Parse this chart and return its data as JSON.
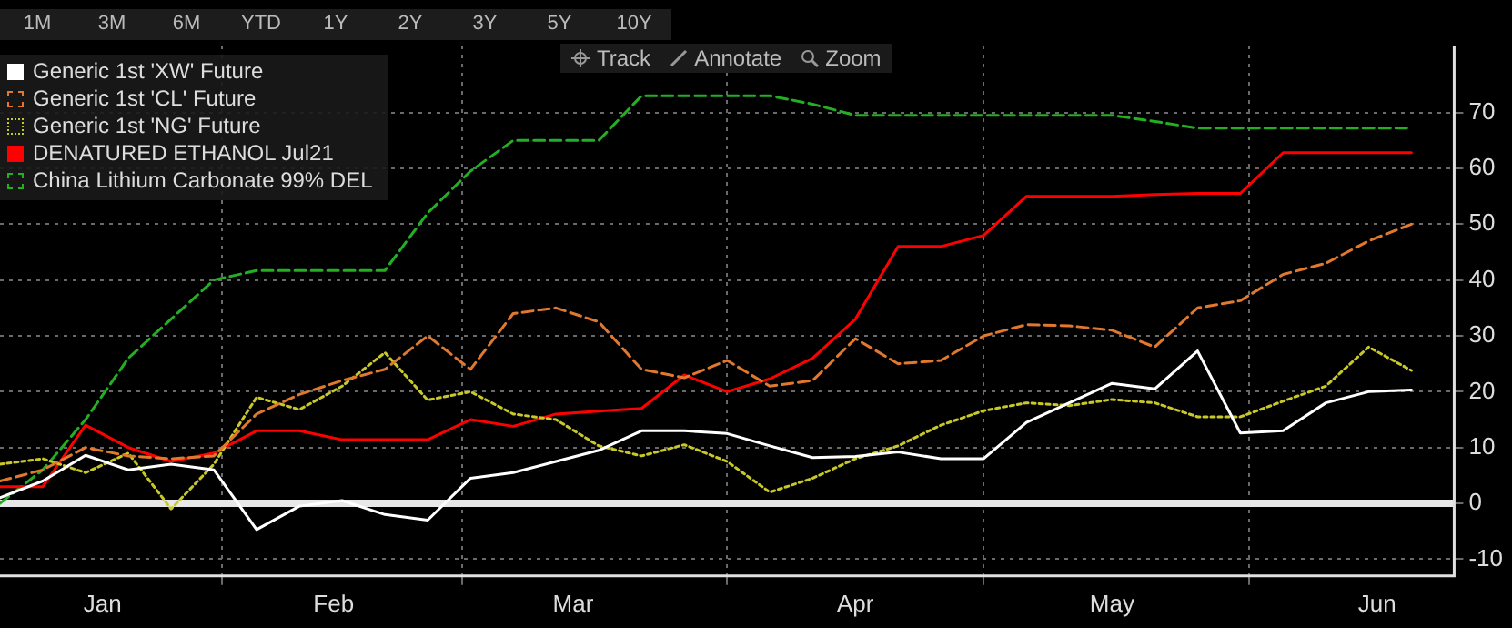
{
  "chart_data": {
    "type": "line",
    "x": [
      "--01-06",
      "--01-11",
      "--01-16",
      "--01-21",
      "--01-26",
      "--01-31",
      "--02-05",
      "--02-10",
      "--02-15",
      "--02-20",
      "--02-25",
      "--03-02",
      "--03-07",
      "--03-12",
      "--03-17",
      "--03-22",
      "--03-27",
      "--04-01",
      "--04-06",
      "--04-11",
      "--04-16",
      "--04-21",
      "--04-26",
      "--05-01",
      "--05-06",
      "--05-11",
      "--05-16",
      "--05-21",
      "--05-26",
      "--05-31",
      "--06-05",
      "--06-10",
      "--06-15",
      "--06-20"
    ],
    "series": [
      {
        "name": "Generic 1st 'XW' Future",
        "color": "#ffffff",
        "line_style": "solid",
        "values": [
          1,
          4,
          8.6,
          6,
          7,
          6,
          -4.7,
          -0.5,
          0.5,
          -2,
          -3,
          4.5,
          5.5,
          7.5,
          9.5,
          13,
          13,
          12.5,
          10.3,
          8.2,
          8.4,
          9.2,
          8,
          8,
          14.5,
          18,
          21.5,
          20.5,
          27.3,
          12.6,
          13,
          18,
          20,
          20.3
        ]
      },
      {
        "name": "Generic 1st 'CL' Future",
        "color": "#e0782e",
        "line_style": "dashed",
        "values": [
          4,
          6,
          10,
          8.5,
          8,
          8.5,
          16,
          19.5,
          22,
          24,
          30,
          24,
          34,
          35,
          32.5,
          24,
          22.5,
          25.6,
          21,
          22,
          29.5,
          25,
          25.6,
          30,
          32,
          31.8,
          31,
          28,
          35,
          36.3,
          41,
          43,
          47,
          50
        ]
      },
      {
        "name": "Generic 1st 'NG' Future",
        "color": "#c8c828",
        "line_style": "dotted",
        "values": [
          7,
          8,
          5.5,
          9,
          -1,
          7,
          19,
          16.8,
          21,
          27,
          18.5,
          20,
          16,
          15,
          10.3,
          8.5,
          10.5,
          7.5,
          2,
          4.5,
          8,
          10.3,
          14,
          16.6,
          18,
          17.5,
          18.6,
          18,
          15.5,
          15.5,
          18.3,
          21,
          28,
          23.8
        ]
      },
      {
        "name": "DENATURED ETHANOL Jul21",
        "color": "#ff0000",
        "line_style": "solid",
        "values": [
          3,
          3,
          14,
          10,
          7.5,
          9,
          13,
          13,
          11.4,
          11.4,
          11.4,
          15,
          13.8,
          16,
          16.5,
          17,
          23,
          20,
          22.3,
          26,
          33,
          46,
          46,
          48,
          55,
          55,
          55,
          55.3,
          55.5,
          55.5,
          62.8,
          62.8,
          62.8,
          62.8
        ]
      },
      {
        "name": "China Lithium Carbonate 99% DEL",
        "color": "#22b022",
        "line_style": "dashed",
        "values": [
          0,
          6,
          15,
          26,
          33,
          40,
          41.7,
          41.7,
          41.7,
          41.7,
          52,
          59.5,
          65,
          65,
          65,
          73,
          73,
          73,
          73,
          71.5,
          69.5,
          69.5,
          69.5,
          69.5,
          69.5,
          69.5,
          69.5,
          68.4,
          67.2,
          67.2,
          67.2,
          67.2,
          67.2,
          67.2
        ]
      }
    ],
    "xlim": [
      "--01-06",
      "--06-25"
    ],
    "xticks": [
      {
        "value": "--01-18",
        "label": "Jan"
      },
      {
        "value": "--02-01",
        "label": null
      },
      {
        "value": "--02-14",
        "label": "Feb"
      },
      {
        "value": "--03-01",
        "label": null
      },
      {
        "value": "--03-14",
        "label": "Mar"
      },
      {
        "value": "--04-01",
        "label": null
      },
      {
        "value": "--04-16",
        "label": "Apr"
      },
      {
        "value": "--05-01",
        "label": null
      },
      {
        "value": "--05-16",
        "label": "May"
      },
      {
        "value": "--06-01",
        "label": null
      },
      {
        "value": "--06-16",
        "label": "Jun"
      }
    ],
    "ylim": [
      -13,
      82
    ],
    "yticks": [
      -10,
      0,
      10,
      20,
      30,
      40,
      50,
      60,
      70
    ],
    "ref_lines": [
      {
        "axis": "y",
        "value": 0,
        "color": "#e8e8e8"
      }
    ],
    "grid": true,
    "legend": "top left",
    "marker": "none",
    "annotations": [
      "1M",
      "3M",
      "6M",
      "YTD",
      "1Y",
      "2Y",
      "3Y",
      "5Y",
      "10Y",
      "Track",
      "Annotate",
      "Zoom"
    ]
  }
}
